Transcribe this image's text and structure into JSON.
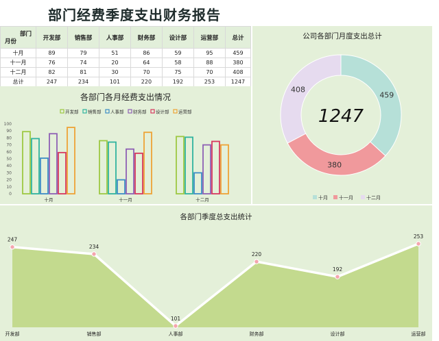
{
  "title": "部门经费季度支出财务报告",
  "table": {
    "corner_dept": "部门",
    "corner_month": "月份",
    "headers": [
      "开发部",
      "销售部",
      "人事部",
      "财务部",
      "设计部",
      "运营部",
      "总计"
    ],
    "rows": [
      {
        "label": "十月",
        "cells": [
          "89",
          "79",
          "51",
          "86",
          "59",
          "95",
          "459"
        ]
      },
      {
        "label": "十一月",
        "cells": [
          "76",
          "74",
          "20",
          "64",
          "58",
          "88",
          "380"
        ]
      },
      {
        "label": "十二月",
        "cells": [
          "82",
          "81",
          "30",
          "70",
          "75",
          "70",
          "408"
        ]
      },
      {
        "label": "总计",
        "cells": [
          "247",
          "234",
          "101",
          "220",
          "192",
          "253",
          "1247"
        ]
      }
    ]
  },
  "chart_data": [
    {
      "type": "bar",
      "title": "各部门各月经费支出情况",
      "categories": [
        "十月",
        "十一月",
        "十二月"
      ],
      "series": [
        {
          "name": "开发部",
          "values": [
            89,
            76,
            82
          ],
          "color": "#9dc842"
        },
        {
          "name": "销售部",
          "values": [
            79,
            74,
            81
          ],
          "color": "#2fb39e"
        },
        {
          "name": "人事部",
          "values": [
            51,
            20,
            30
          ],
          "color": "#3c8cc6"
        },
        {
          "name": "财务部",
          "values": [
            86,
            64,
            70
          ],
          "color": "#8e5fb4"
        },
        {
          "name": "设计部",
          "values": [
            59,
            58,
            75
          ],
          "color": "#d7375e"
        },
        {
          "name": "运营部",
          "values": [
            95,
            88,
            70
          ],
          "color": "#eea335"
        }
      ],
      "yticks": [
        "0",
        "10",
        "20",
        "30",
        "40",
        "50",
        "60",
        "70",
        "80",
        "90",
        "100"
      ],
      "ylim": [
        0,
        100
      ],
      "legend": "top"
    },
    {
      "type": "pie",
      "title": "公司各部门月度支出总计",
      "center_label": "1247",
      "labels": [
        "十月",
        "十一月",
        "十二月"
      ],
      "values": [
        459,
        380,
        408
      ],
      "colors": [
        "#b6e0d8",
        "#f0999c",
        "#e6dbef"
      ],
      "legend": "bottom"
    },
    {
      "type": "area",
      "title": "各部门季度总支出统计",
      "categories": [
        "开发部",
        "销售部",
        "人事部",
        "财务部",
        "设计部",
        "运营部"
      ],
      "values": [
        247,
        234,
        101,
        220,
        192,
        253
      ],
      "fill_color": "#c3da8e",
      "marker_color": "#f4a6ae"
    }
  ]
}
